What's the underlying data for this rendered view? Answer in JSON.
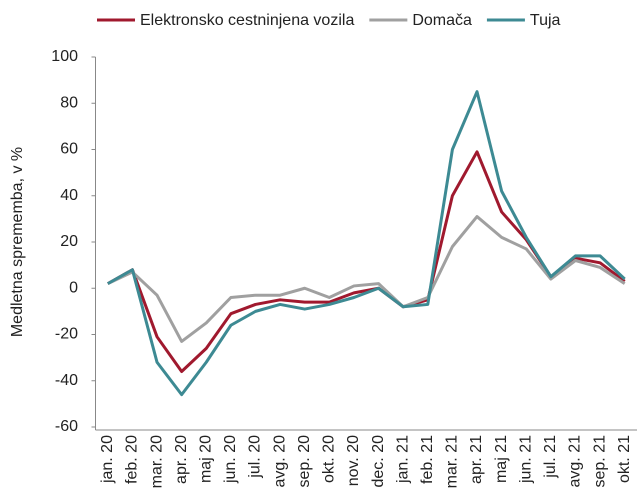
{
  "chart_data": {
    "type": "line",
    "y_label": "Medletna sprememba, v %",
    "categories": [
      "jan. 20",
      "feb. 20",
      "mar. 20",
      "apr. 20",
      "maj 20",
      "jun. 20",
      "jul. 20",
      "avg. 20",
      "sep. 20",
      "okt. 20",
      "nov. 20",
      "dec. 20",
      "jan. 21",
      "feb. 21",
      "mar. 21",
      "apr. 21",
      "maj 21",
      "jun. 21",
      "jul. 21",
      "avg. 21",
      "sep. 21",
      "okt. 21"
    ],
    "series": [
      {
        "name": "Elektronsko cestninjena vozila",
        "color": "#a0192e",
        "values": [
          2,
          8,
          -21,
          -36,
          -26,
          -11,
          -7,
          -5,
          -6,
          -6,
          -2,
          0,
          -8,
          -5,
          40,
          59,
          33,
          21,
          5,
          13,
          11,
          3
        ]
      },
      {
        "name": "Domača",
        "color": "#a0a0a0",
        "values": [
          2,
          7,
          -3,
          -23,
          -15,
          -4,
          -3,
          -3,
          0,
          -4,
          1,
          2,
          -8,
          -4,
          18,
          31,
          22,
          17,
          4,
          12,
          9,
          2
        ]
      },
      {
        "name": "Tuja",
        "color": "#3d8a93",
        "values": [
          2,
          8,
          -32,
          -46,
          -32,
          -16,
          -10,
          -7,
          -9,
          -7,
          -4,
          0,
          -8,
          -7,
          60,
          85,
          42,
          22,
          5,
          14,
          14,
          4
        ]
      }
    ],
    "ylim": [
      -60,
      100
    ],
    "yticks": [
      -60,
      -40,
      -20,
      0,
      20,
      40,
      60,
      80,
      100
    ],
    "grid": false,
    "legend": "top"
  }
}
